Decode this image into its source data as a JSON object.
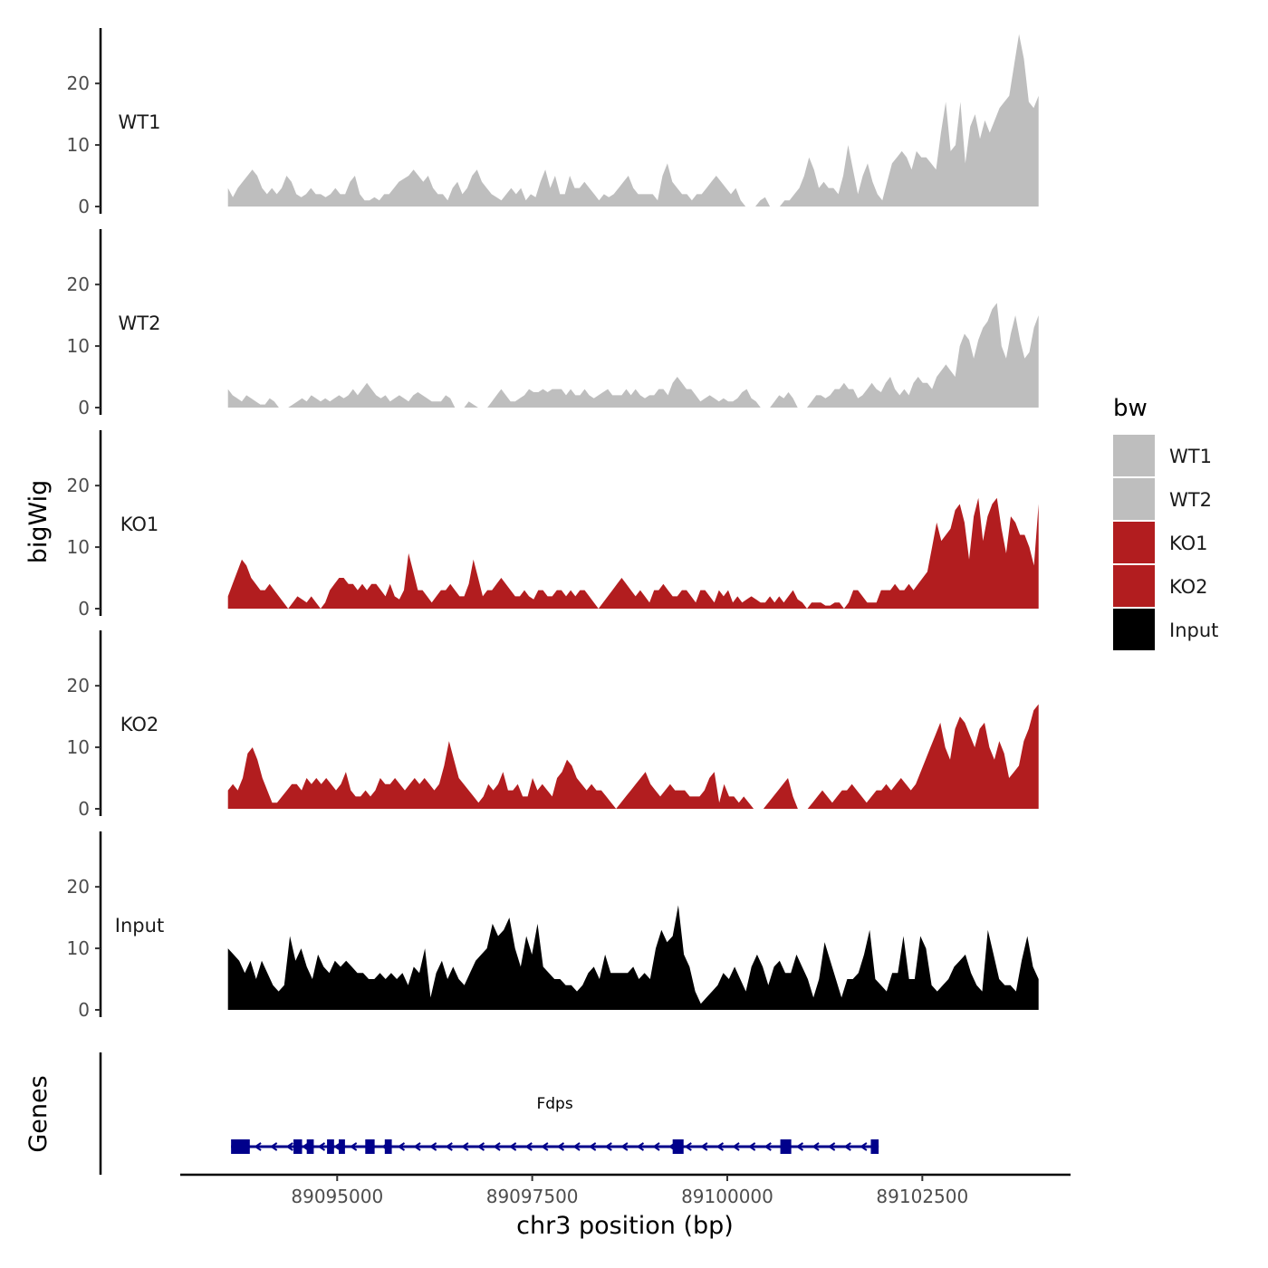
{
  "chart_data": {
    "type": "area",
    "ylabel": "bigWig",
    "xlabel": "chr3 position (bp)",
    "gene_panel_label": "Genes",
    "xlim": [
      89093000,
      89104400
    ],
    "x_ticks": [
      89095000,
      89097500,
      89100000,
      89102500
    ],
    "x_tick_labels": [
      "89095000",
      "89097500",
      "89100000",
      "89102500"
    ],
    "ylim": [
      0,
      29
    ],
    "y_ticks": [
      0,
      10,
      20
    ],
    "y_tick_labels": [
      "0",
      "10",
      "20"
    ],
    "track_range": [
      89093600,
      89103990
    ],
    "legend": {
      "title": "bw",
      "entries": [
        {
          "label": "WT1",
          "color": "#bebebe"
        },
        {
          "label": "WT2",
          "color": "#bebebe"
        },
        {
          "label": "KO1",
          "color": "#b21d1f"
        },
        {
          "label": "KO2",
          "color": "#b21d1f"
        },
        {
          "label": "Input",
          "color": "#000000"
        }
      ]
    },
    "series": [
      {
        "name": "WT1",
        "color": "#bebebe",
        "values": [
          3,
          1.5,
          3,
          4,
          5,
          6,
          5,
          3,
          2,
          3,
          2,
          3,
          5,
          4,
          2,
          1.5,
          2,
          3,
          2,
          2,
          1.5,
          2,
          3,
          2,
          2,
          4,
          5,
          2,
          1,
          1,
          1.5,
          1,
          2,
          2,
          3,
          4,
          4.5,
          5,
          6,
          5,
          4,
          5,
          3,
          2,
          2,
          1,
          3,
          4,
          2,
          3,
          5,
          6,
          4,
          3,
          2,
          1.5,
          1,
          2,
          3,
          2,
          3,
          1,
          2,
          1.5,
          4,
          6,
          3,
          5,
          2,
          2,
          5,
          3,
          3,
          4,
          3,
          2,
          1,
          2,
          1.5,
          2,
          3,
          4,
          5,
          3,
          2,
          2,
          2,
          2,
          1,
          5,
          7,
          4,
          3,
          2,
          2,
          1,
          2,
          2,
          3,
          4,
          5,
          4,
          3,
          2,
          3,
          1,
          0,
          null,
          0,
          1,
          1.5,
          0,
          null,
          0,
          1,
          1,
          2,
          3,
          5,
          8,
          6,
          3,
          4,
          3,
          3,
          2,
          5,
          10,
          6,
          2,
          5,
          7,
          4,
          2,
          1,
          4,
          7,
          8,
          9,
          8,
          6,
          9,
          8,
          8,
          7,
          6,
          12,
          17,
          9,
          10,
          17,
          7,
          13,
          15,
          11,
          14,
          12,
          14,
          16,
          17,
          18,
          23,
          28,
          24,
          17,
          16,
          18
        ]
      },
      {
        "name": "WT2",
        "color": "#bebebe",
        "values": [
          3,
          2,
          1.5,
          1,
          2,
          1.5,
          1,
          0.5,
          0.5,
          1.5,
          1,
          0,
          null,
          0,
          0.5,
          1,
          1.5,
          1,
          2,
          1.5,
          1,
          1.5,
          1,
          1.5,
          2,
          1.5,
          2,
          3,
          2,
          3,
          4,
          3,
          2,
          1.5,
          2,
          1,
          1.5,
          2,
          1.5,
          1,
          2,
          2.5,
          2,
          1.5,
          1,
          1,
          1,
          2,
          1.5,
          0,
          null,
          0,
          1,
          0.5,
          0,
          null,
          0,
          1,
          2,
          3,
          2,
          1,
          1,
          1.5,
          2,
          3,
          2.5,
          2.5,
          3,
          2.5,
          3,
          3,
          3,
          2,
          3,
          2,
          2,
          3,
          2,
          1.5,
          2,
          2.5,
          3,
          2,
          2,
          2,
          3,
          2,
          3,
          2,
          1.5,
          2,
          2,
          3,
          3,
          2,
          4,
          5,
          4,
          3,
          3,
          2,
          1,
          1.5,
          2,
          1.5,
          1,
          1.5,
          1,
          1,
          1.5,
          2.5,
          3,
          1.5,
          1,
          0,
          null,
          0,
          1,
          2,
          1.5,
          2.5,
          1.5,
          0,
          null,
          0,
          1,
          2,
          2,
          1.5,
          2,
          3,
          3,
          4,
          3,
          3,
          1.5,
          2,
          3,
          4,
          3,
          2.5,
          4,
          5,
          3,
          2,
          3,
          2,
          4,
          5,
          4,
          4,
          3,
          5,
          6,
          7,
          6,
          5,
          10,
          12,
          11,
          8,
          11,
          13,
          14,
          16,
          17,
          10,
          8,
          12,
          15,
          11,
          8,
          9,
          13,
          15
        ]
      },
      {
        "name": "KO1",
        "color": "#b21d1f",
        "values": [
          2,
          4,
          6,
          8,
          7,
          5,
          4,
          3,
          3,
          4,
          3,
          2,
          1,
          0,
          1,
          2,
          1.5,
          1,
          2,
          1,
          0,
          1,
          3,
          4,
          5,
          5,
          4,
          4,
          3,
          4,
          3,
          4,
          4,
          3,
          2,
          4,
          2,
          1.5,
          3,
          9,
          6,
          3,
          3,
          2,
          1,
          2,
          3,
          3,
          4,
          3,
          2,
          2,
          4,
          8,
          5,
          2,
          3,
          3,
          4,
          5,
          4,
          3,
          2,
          2,
          3,
          2,
          1.5,
          3,
          3,
          2,
          2,
          3,
          3,
          2,
          3,
          2,
          3,
          3,
          2,
          1,
          0,
          1,
          2,
          3,
          4,
          5,
          4,
          3,
          2,
          3,
          2,
          1,
          3,
          3,
          4,
          3,
          2,
          2,
          3,
          3,
          2,
          1,
          3,
          3,
          2,
          1,
          3,
          2,
          3,
          1,
          2,
          1,
          1.5,
          2,
          1.5,
          1,
          1,
          2,
          1,
          2,
          1,
          2,
          3,
          1.5,
          1,
          0,
          1,
          1,
          1,
          0.5,
          0.5,
          1,
          1,
          0,
          1,
          3,
          3,
          2,
          1,
          1,
          1,
          3,
          3,
          3,
          4,
          3,
          3,
          4,
          3,
          4,
          5,
          6,
          10,
          14,
          11,
          12,
          13,
          16,
          17,
          14,
          8,
          15,
          18,
          11,
          15,
          17,
          18,
          13,
          9,
          15,
          14,
          12,
          12,
          10,
          7,
          17
        ]
      },
      {
        "name": "KO2",
        "color": "#b21d1f",
        "values": [
          3,
          4,
          3,
          5,
          9,
          10,
          8,
          5,
          3,
          1,
          1,
          2,
          3,
          4,
          4,
          3,
          5,
          4,
          5,
          4,
          5,
          4,
          3,
          4,
          6,
          3,
          2,
          2,
          3,
          2,
          3,
          5,
          4,
          4,
          5,
          4,
          3,
          4,
          5,
          4,
          5,
          4,
          3,
          4,
          7,
          11,
          8,
          5,
          4,
          3,
          2,
          1,
          2,
          4,
          3,
          4,
          6,
          3,
          3,
          4,
          2,
          2,
          5,
          3,
          4,
          3,
          2,
          5,
          6,
          8,
          7,
          5,
          4,
          3,
          4,
          3,
          3,
          2,
          1,
          0,
          1,
          2,
          3,
          4,
          5,
          6,
          4,
          3,
          2,
          3,
          4,
          3,
          3,
          3,
          2,
          2,
          2,
          3,
          5,
          6,
          1,
          4,
          2,
          2,
          1,
          2,
          1,
          0,
          null,
          0,
          1,
          2,
          3,
          4,
          5,
          2,
          0,
          null,
          0,
          1,
          2,
          3,
          2,
          1,
          2,
          3,
          3,
          4,
          3,
          2,
          1,
          2,
          3,
          3,
          4,
          3,
          4,
          5,
          4,
          3,
          4,
          6,
          8,
          10,
          12,
          14,
          10,
          8,
          13,
          15,
          14,
          12,
          10,
          13,
          14,
          10,
          8,
          11,
          9,
          5,
          6,
          7,
          11,
          13,
          16,
          17
        ]
      },
      {
        "name": "Input",
        "color": "#000000",
        "values": [
          10,
          9,
          8,
          6,
          8,
          5,
          8,
          6,
          4,
          3,
          4,
          12,
          8,
          10,
          7,
          5,
          9,
          7,
          6,
          8,
          7,
          8,
          7,
          6,
          6,
          5,
          5,
          6,
          5,
          6,
          5,
          6,
          4,
          7,
          6,
          10,
          2,
          6,
          8,
          5,
          7,
          5,
          4,
          6,
          8,
          9,
          10,
          14,
          12,
          13,
          15,
          10,
          7,
          12,
          9,
          14,
          7,
          6,
          5,
          5,
          4,
          4,
          3,
          4,
          6,
          7,
          5,
          9,
          6,
          6,
          6,
          6,
          7,
          5,
          6,
          5,
          10,
          13,
          11,
          12,
          17,
          9,
          7,
          3,
          1,
          2,
          3,
          4,
          6,
          5,
          7,
          5,
          3,
          7,
          9,
          7,
          4,
          7,
          8,
          6,
          6,
          9,
          7,
          5,
          2,
          5,
          11,
          8,
          5,
          2,
          5,
          5,
          6,
          9,
          13,
          5,
          4,
          3,
          6,
          6,
          12,
          5,
          5,
          12,
          10,
          4,
          3,
          4,
          5,
          7,
          8,
          9,
          6,
          4,
          3,
          13,
          9,
          5,
          4,
          4,
          3,
          8,
          12,
          7,
          5
        ]
      }
    ],
    "gene": {
      "name": "Fdps",
      "strand": "-",
      "start": 89093640,
      "end": 89101940,
      "color": "#00008b",
      "exons": [
        [
          89093640,
          89093880
        ],
        [
          89094440,
          89094550
        ],
        [
          89094610,
          89094700
        ],
        [
          89094870,
          89094960
        ],
        [
          89095020,
          89095100
        ],
        [
          89095360,
          89095480
        ],
        [
          89095610,
          89095700
        ],
        [
          89099300,
          89099440
        ],
        [
          89100680,
          89100820
        ],
        [
          89101840,
          89101940
        ]
      ]
    }
  }
}
